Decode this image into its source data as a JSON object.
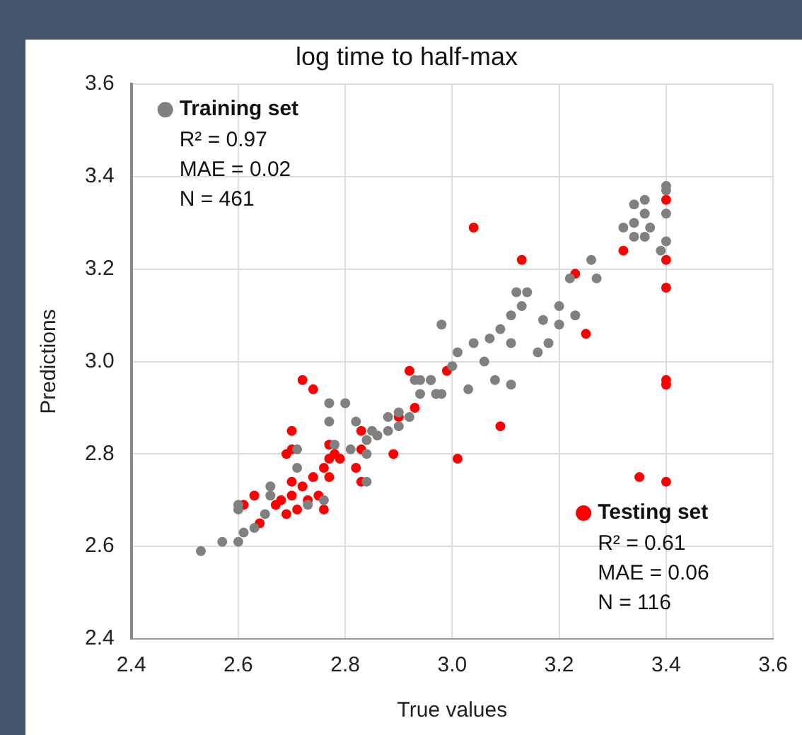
{
  "chart_data": {
    "type": "scatter",
    "title": "log time to half-max",
    "xlabel": "True values",
    "ylabel": "Predictions",
    "xlim": [
      2.4,
      3.6
    ],
    "xticks": [
      2.4,
      2.6,
      2.8,
      {
        "value": 3,
        "label": "3.0"
      },
      3.2,
      3.4,
      3.6
    ],
    "ylim": [
      2.4,
      3.6
    ],
    "yticks": [
      2.4,
      2.6,
      2.8,
      {
        "value": 3,
        "label": "3.0"
      },
      3.2,
      3.4,
      3.6
    ],
    "grid": true,
    "marker": "circle",
    "legend": "top left",
    "annotations": [
      "R² = 0.97",
      "MAE = 0.02",
      "N = 461",
      "R² = 0.61",
      "MAE = 0.06",
      "N = 116"
    ],
    "series": [
      {
        "name": "Training set",
        "color": "#808080",
        "x": [
          2.53,
          2.57,
          2.6,
          2.61,
          2.6,
          2.63,
          2.66,
          2.71,
          2.77,
          2.8,
          2.77,
          2.82,
          2.84,
          2.84,
          2.86,
          2.88,
          2.9,
          2.93,
          2.96,
          2.98,
          3.0,
          2.98,
          2.94,
          2.96,
          2.97,
          3.01,
          3.04,
          3.03,
          3.06,
          3.07,
          3.08,
          3.09,
          3.11,
          3.11,
          3.11,
          3.12,
          3.14,
          3.13,
          3.16,
          3.17,
          3.18,
          3.2,
          3.2,
          3.23,
          3.22,
          3.26,
          3.27,
          3.32,
          3.34,
          3.34,
          3.36,
          3.36,
          3.37,
          3.34,
          3.36,
          3.4,
          3.4,
          3.4,
          3.4,
          3.39,
          2.6,
          2.65,
          2.66,
          2.71,
          2.73,
          2.76,
          2.81,
          2.78,
          2.84,
          2.85,
          2.88,
          2.9,
          2.92,
          2.94,
          2.97
        ],
        "values": [
          2.59,
          2.61,
          2.61,
          2.63,
          2.69,
          2.64,
          2.73,
          2.81,
          2.91,
          2.91,
          2.87,
          2.87,
          2.8,
          2.74,
          2.84,
          2.88,
          2.89,
          2.96,
          2.96,
          2.93,
          2.99,
          3.08,
          2.96,
          2.96,
          2.93,
          3.02,
          3.04,
          2.94,
          3.0,
          3.05,
          2.96,
          3.07,
          2.95,
          3.1,
          3.04,
          3.15,
          3.15,
          3.12,
          3.02,
          3.09,
          3.04,
          3.12,
          3.08,
          3.1,
          3.18,
          3.22,
          3.18,
          3.29,
          3.3,
          3.34,
          3.35,
          3.32,
          3.29,
          3.27,
          3.27,
          3.38,
          3.37,
          3.32,
          3.26,
          3.24,
          2.68,
          2.67,
          2.71,
          2.77,
          2.69,
          2.7,
          2.81,
          2.82,
          2.83,
          2.85,
          2.85,
          2.86,
          2.88,
          2.93,
          2.93
        ]
      },
      {
        "name": "Testing set",
        "color": "#ff0000",
        "x": [
          3.04,
          3.13,
          3.23,
          3.25,
          3.32,
          3.4,
          3.4,
          3.4,
          3.4,
          3.4,
          3.09,
          3.01,
          3.35,
          3.4,
          2.99,
          2.93,
          2.72,
          2.74,
          2.92,
          2.9,
          2.7,
          2.83,
          2.89,
          2.83,
          2.82,
          2.83,
          2.76,
          2.64,
          2.61,
          2.63,
          2.69,
          2.7,
          2.77,
          2.68,
          2.7,
          2.72,
          2.74,
          2.76,
          2.77,
          2.78,
          2.71,
          2.69,
          2.67,
          2.75,
          2.73,
          2.77,
          2.7,
          2.79
        ],
        "values": [
          3.29,
          3.22,
          3.19,
          3.06,
          3.24,
          3.35,
          3.22,
          3.16,
          2.96,
          2.95,
          2.86,
          2.79,
          2.75,
          2.74,
          2.98,
          2.9,
          2.96,
          2.94,
          2.98,
          2.88,
          2.85,
          2.85,
          2.8,
          2.81,
          2.77,
          2.74,
          2.68,
          2.65,
          2.69,
          2.71,
          2.8,
          2.81,
          2.82,
          2.7,
          2.71,
          2.73,
          2.75,
          2.77,
          2.79,
          2.8,
          2.68,
          2.67,
          2.69,
          2.71,
          2.7,
          2.75,
          2.74,
          2.79
        ]
      }
    ]
  }
}
